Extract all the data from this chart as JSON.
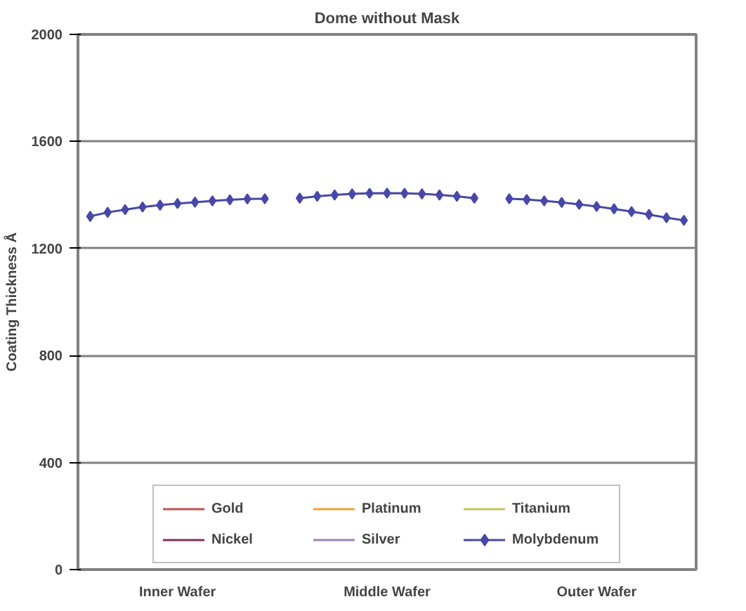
{
  "chart_data": {
    "type": "line",
    "title": "Dome without Mask",
    "ylabel": "Coating Thickness Å",
    "categories": [
      null,
      null,
      null,
      null,
      null,
      "Inner Wafer",
      null,
      null,
      null,
      null,
      null,
      null,
      null,
      null,
      null,
      null,
      null,
      "Middle Wafer",
      null,
      null,
      null,
      null,
      null,
      null,
      null,
      null,
      null,
      null,
      null,
      "Outer Wafer",
      null,
      null,
      null,
      null,
      null
    ],
    "ylim": [
      0,
      2000
    ],
    "yticks": [
      0,
      400,
      800,
      1200,
      1600,
      2000
    ],
    "grid": "y",
    "legend": "bottom",
    "marker": "diamond",
    "line_style": "solid",
    "series": [
      {
        "name": "Gold",
        "color": "#c0504d",
        "values": [
          null,
          null,
          null,
          null,
          null,
          null,
          null,
          null,
          null,
          null,
          null,
          null,
          null,
          null,
          null,
          null,
          null,
          null,
          null,
          null,
          null,
          null,
          null,
          null,
          null,
          null,
          null,
          null,
          null,
          null,
          null,
          null,
          null,
          null,
          null
        ]
      },
      {
        "name": "Platinum",
        "color": "#f0a030",
        "values": [
          null,
          null,
          null,
          null,
          null,
          null,
          null,
          null,
          null,
          null,
          null,
          null,
          null,
          null,
          null,
          null,
          null,
          null,
          null,
          null,
          null,
          null,
          null,
          null,
          null,
          null,
          null,
          null,
          null,
          null,
          null,
          null,
          null,
          null,
          null
        ]
      },
      {
        "name": "Titanium",
        "color": "#c8c060",
        "values": [
          null,
          null,
          null,
          null,
          null,
          null,
          null,
          null,
          null,
          null,
          null,
          null,
          null,
          null,
          null,
          null,
          null,
          null,
          null,
          null,
          null,
          null,
          null,
          null,
          null,
          null,
          null,
          null,
          null,
          null,
          null,
          null,
          null,
          null,
          null
        ]
      },
      {
        "name": "Nickel",
        "color": "#803060",
        "values": [
          null,
          null,
          null,
          null,
          null,
          null,
          null,
          null,
          null,
          null,
          null,
          null,
          null,
          null,
          null,
          null,
          null,
          null,
          null,
          null,
          null,
          null,
          null,
          null,
          null,
          null,
          null,
          null,
          null,
          null,
          null,
          null,
          null,
          null,
          null
        ]
      },
      {
        "name": "Silver",
        "color": "#a080c0",
        "values": [
          null,
          null,
          null,
          null,
          null,
          null,
          null,
          null,
          null,
          null,
          null,
          null,
          null,
          null,
          null,
          null,
          null,
          null,
          null,
          null,
          null,
          null,
          null,
          null,
          null,
          null,
          null,
          null,
          null,
          null,
          null,
          null,
          null,
          null,
          null
        ]
      },
      {
        "name": "Molybdenum",
        "color": "#4848a8",
        "values": [
          1320,
          1335,
          1345,
          1355,
          1362,
          1368,
          1373,
          1378,
          1382,
          1385,
          1386,
          null,
          1388,
          1395,
          1400,
          1404,
          1406,
          1407,
          1406,
          1404,
          1400,
          1395,
          1388,
          null,
          1386,
          1383,
          1378,
          1372,
          1365,
          1357,
          1348,
          1338,
          1327,
          1315,
          1305
        ]
      }
    ]
  }
}
